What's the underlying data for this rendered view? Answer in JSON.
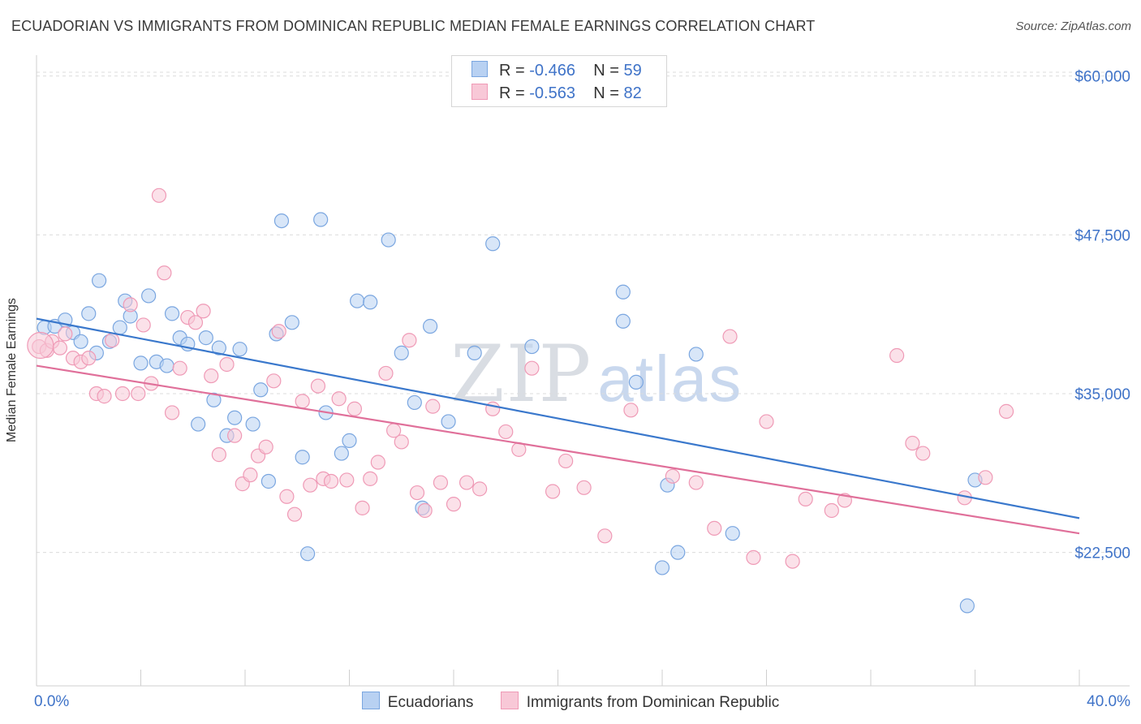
{
  "title": "ECUADORIAN VS IMMIGRANTS FROM DOMINICAN REPUBLIC MEDIAN FEMALE EARNINGS CORRELATION CHART",
  "source": "Source: ZipAtlas.com",
  "watermark": {
    "zip": "ZIP",
    "atlas": "atlas"
  },
  "legend_top": [
    {
      "r_label": "R =",
      "r_value": "-0.466",
      "n_label": "N =",
      "n_value": "59"
    },
    {
      "r_label": "R =",
      "r_value": "-0.563",
      "n_label": "N =",
      "n_value": "82"
    }
  ],
  "chart_data": {
    "type": "scatter",
    "title": "ECUADORIAN VS IMMIGRANTS FROM DOMINICAN REPUBLIC MEDIAN FEMALE EARNINGS CORRELATION CHART",
    "xlabel": "",
    "ylabel": "Median Female Earnings",
    "xlim": [
      0,
      40
    ],
    "ylim": [
      12000,
      61000
    ],
    "x_tick_labels": [
      "0.0%",
      "40.0%"
    ],
    "y_ticks": [
      22500,
      35000,
      47500,
      60000
    ],
    "y_tick_labels": [
      "$22,500",
      "$35,000",
      "$47,500",
      "$60,000"
    ],
    "grid": true,
    "legend_position": "bottom",
    "series": [
      {
        "name": "Ecuadorians",
        "color": "#7aa6e0",
        "fill": "#b8d1f2",
        "trend": {
          "x": [
            0,
            40
          ],
          "y": [
            40900,
            25200
          ],
          "color": "#3a78cc"
        },
        "points": [
          [
            0.3,
            40200
          ],
          [
            0.7,
            40300
          ],
          [
            1.1,
            40800
          ],
          [
            1.4,
            39800
          ],
          [
            1.7,
            39100
          ],
          [
            2.0,
            41300
          ],
          [
            2.3,
            38200
          ],
          [
            2.4,
            43900
          ],
          [
            2.8,
            39100
          ],
          [
            3.2,
            40200
          ],
          [
            3.4,
            42300
          ],
          [
            3.6,
            41100
          ],
          [
            4.0,
            37400
          ],
          [
            4.3,
            42700
          ],
          [
            4.6,
            37500
          ],
          [
            5.0,
            37200
          ],
          [
            5.2,
            41300
          ],
          [
            5.5,
            39400
          ],
          [
            5.8,
            38900
          ],
          [
            6.2,
            32600
          ],
          [
            6.5,
            39400
          ],
          [
            6.8,
            34500
          ],
          [
            7.0,
            38600
          ],
          [
            7.3,
            31700
          ],
          [
            7.6,
            33100
          ],
          [
            7.8,
            38500
          ],
          [
            8.3,
            32600
          ],
          [
            8.6,
            35300
          ],
          [
            8.9,
            28100
          ],
          [
            9.2,
            39700
          ],
          [
            9.4,
            48600
          ],
          [
            9.8,
            40600
          ],
          [
            10.2,
            30000
          ],
          [
            10.4,
            22400
          ],
          [
            10.9,
            48700
          ],
          [
            11.1,
            33500
          ],
          [
            11.7,
            30300
          ],
          [
            12.0,
            31300
          ],
          [
            12.3,
            42300
          ],
          [
            12.8,
            42200
          ],
          [
            13.5,
            47100
          ],
          [
            14.0,
            38200
          ],
          [
            14.5,
            34300
          ],
          [
            14.8,
            26000
          ],
          [
            15.1,
            40300
          ],
          [
            15.8,
            32800
          ],
          [
            16.8,
            38200
          ],
          [
            17.5,
            46800
          ],
          [
            19.0,
            38700
          ],
          [
            22.5,
            40700
          ],
          [
            22.5,
            43000
          ],
          [
            23.0,
            35900
          ],
          [
            24.0,
            21300
          ],
          [
            24.2,
            27800
          ],
          [
            24.6,
            22500
          ],
          [
            25.3,
            38100
          ],
          [
            26.7,
            24000
          ],
          [
            35.7,
            18300
          ],
          [
            36.0,
            28200
          ]
        ]
      },
      {
        "name": "Immigrants from Dominican Republic",
        "color": "#ef9ab6",
        "fill": "#f8c8d7",
        "trend": {
          "x": [
            0,
            40
          ],
          "y": [
            37200,
            24000
          ],
          "color": "#e0709a"
        },
        "points": [
          [
            0.1,
            38700
          ],
          [
            0.4,
            38400
          ],
          [
            0.6,
            39100
          ],
          [
            0.9,
            38600
          ],
          [
            1.1,
            39700
          ],
          [
            1.4,
            37800
          ],
          [
            1.7,
            37500
          ],
          [
            2.0,
            37800
          ],
          [
            2.3,
            35000
          ],
          [
            2.6,
            34800
          ],
          [
            2.9,
            39200
          ],
          [
            3.3,
            35000
          ],
          [
            3.6,
            42000
          ],
          [
            3.9,
            35000
          ],
          [
            4.1,
            40400
          ],
          [
            4.4,
            35800
          ],
          [
            4.7,
            50600
          ],
          [
            4.9,
            44500
          ],
          [
            5.2,
            33500
          ],
          [
            5.5,
            37000
          ],
          [
            5.8,
            41000
          ],
          [
            6.1,
            40600
          ],
          [
            6.4,
            41500
          ],
          [
            6.7,
            36400
          ],
          [
            7.0,
            30200
          ],
          [
            7.3,
            37300
          ],
          [
            7.6,
            31700
          ],
          [
            7.9,
            27900
          ],
          [
            8.2,
            28600
          ],
          [
            8.5,
            30100
          ],
          [
            8.8,
            30800
          ],
          [
            9.1,
            36000
          ],
          [
            9.3,
            39900
          ],
          [
            9.6,
            26900
          ],
          [
            9.9,
            25500
          ],
          [
            10.2,
            34400
          ],
          [
            10.5,
            27800
          ],
          [
            10.8,
            35600
          ],
          [
            11.0,
            28300
          ],
          [
            11.3,
            28100
          ],
          [
            11.6,
            34600
          ],
          [
            11.9,
            28200
          ],
          [
            12.2,
            33800
          ],
          [
            12.5,
            26000
          ],
          [
            12.8,
            28300
          ],
          [
            13.1,
            29600
          ],
          [
            13.4,
            36600
          ],
          [
            13.7,
            32100
          ],
          [
            14.0,
            31200
          ],
          [
            14.3,
            39200
          ],
          [
            14.6,
            27200
          ],
          [
            14.9,
            25800
          ],
          [
            15.2,
            34000
          ],
          [
            15.5,
            28000
          ],
          [
            16.0,
            26300
          ],
          [
            16.5,
            28000
          ],
          [
            17.0,
            27500
          ],
          [
            17.5,
            33800
          ],
          [
            18.0,
            32000
          ],
          [
            18.5,
            30600
          ],
          [
            19.0,
            37000
          ],
          [
            19.8,
            27300
          ],
          [
            20.3,
            29700
          ],
          [
            21.0,
            27600
          ],
          [
            21.8,
            23800
          ],
          [
            22.8,
            33700
          ],
          [
            24.4,
            28500
          ],
          [
            25.3,
            28000
          ],
          [
            26.0,
            24400
          ],
          [
            26.6,
            39500
          ],
          [
            27.5,
            22100
          ],
          [
            28.0,
            32800
          ],
          [
            29.0,
            21800
          ],
          [
            29.5,
            26700
          ],
          [
            30.5,
            25800
          ],
          [
            31.0,
            26600
          ],
          [
            33.0,
            38000
          ],
          [
            33.6,
            31100
          ],
          [
            34.0,
            30300
          ],
          [
            35.6,
            26800
          ],
          [
            36.4,
            28400
          ],
          [
            37.2,
            33600
          ]
        ]
      }
    ]
  }
}
